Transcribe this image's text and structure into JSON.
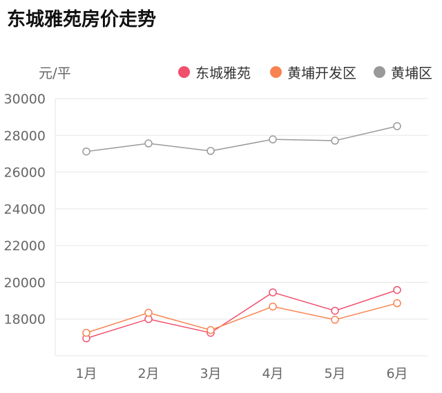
{
  "chart_data": {
    "type": "line",
    "title": "东城雅苑房价走势",
    "ylabel": "元/平",
    "categories": [
      "1月",
      "2月",
      "3月",
      "4月",
      "5月",
      "6月"
    ],
    "ylim": [
      16000,
      30000
    ],
    "yticks": [
      18000,
      20000,
      22000,
      24000,
      26000,
      28000,
      30000
    ],
    "grid": true,
    "legend_position": "top-right",
    "series": [
      {
        "name": "东城雅苑",
        "color": "#f0506e",
        "values": [
          16950,
          18000,
          17250,
          19450,
          18450,
          19580
        ]
      },
      {
        "name": "黄埔开发区",
        "color": "#f88350",
        "values": [
          17250,
          18340,
          17400,
          18680,
          17960,
          18860
        ]
      },
      {
        "name": "黄埔区",
        "color": "#999999",
        "values": [
          27120,
          27560,
          27150,
          27780,
          27710,
          28500
        ]
      }
    ]
  }
}
